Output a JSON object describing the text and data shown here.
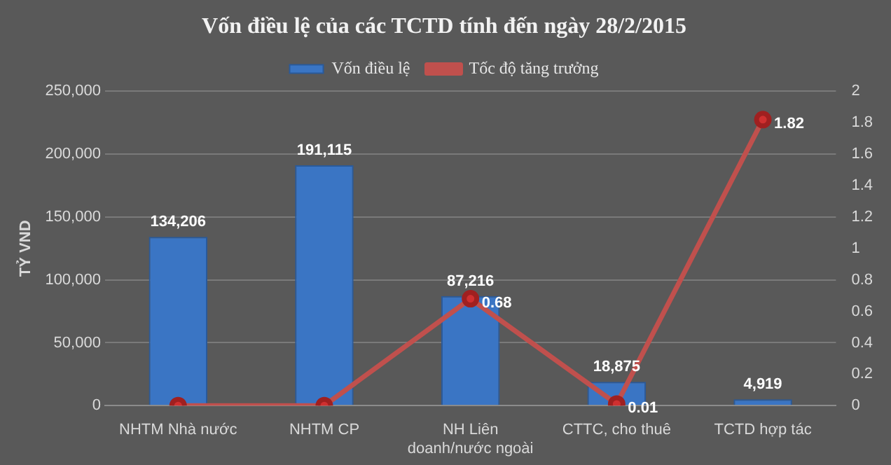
{
  "chart_data": {
    "type": "bar",
    "title": "Vốn điều lệ của các TCTD tính đến ngày 28/2/2015",
    "ylabel": "TỶ VND",
    "categories": [
      "NHTM Nhà nước",
      "NHTM CP",
      "NH Liên doanh/nước ngoài",
      "CTTC, cho thuê",
      "TCTD hợp tác"
    ],
    "series": [
      {
        "name": "Vốn điều lệ",
        "color": "#3a75c4",
        "values": [
          134206,
          191115,
          87216,
          18875,
          4919
        ],
        "value_labels": [
          "134,206",
          "191,115",
          "87,216",
          "18,875",
          "4,919"
        ]
      },
      {
        "name": "Tốc độ tăng trưởng",
        "type": "line",
        "axis": "y2",
        "color": "#c0504d",
        "values": [
          0,
          0,
          0.68,
          0.01,
          1.82
        ],
        "value_labels": [
          null,
          null,
          "0.68",
          "0.01",
          "1.82"
        ]
      }
    ],
    "ylim": [
      0,
      250000
    ],
    "yticks": [
      {
        "value": 0,
        "label": "0"
      },
      {
        "value": 50000,
        "label": "50,000"
      },
      {
        "value": 100000,
        "label": "100,000"
      },
      {
        "value": 150000,
        "label": "150,000"
      },
      {
        "value": 200000,
        "label": "200,000"
      },
      {
        "value": 250000,
        "label": "250,000"
      }
    ],
    "y2lim": [
      0,
      2
    ],
    "y2ticks": [
      0,
      0.2,
      0.4,
      0.6,
      0.8,
      1,
      1.2,
      1.4,
      1.6,
      1.8,
      2
    ],
    "grid": "y",
    "legend": "top",
    "marker": "circle",
    "line_style": "solid"
  }
}
